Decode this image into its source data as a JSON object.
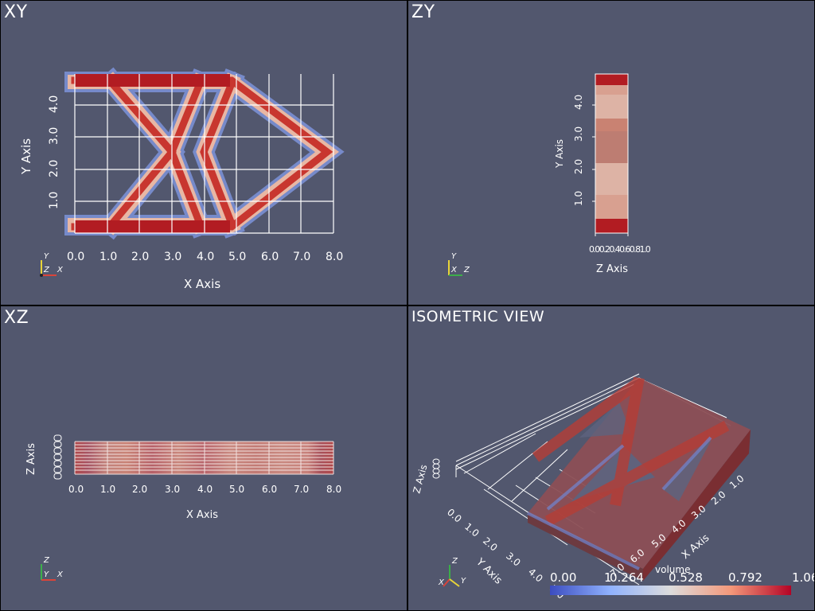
{
  "viewports": {
    "xy": {
      "title": "XY",
      "xlabel": "X Axis",
      "ylabel": "Y Axis",
      "xticks": [
        "0.0",
        "1.0",
        "2.0",
        "3.0",
        "4.0",
        "5.0",
        "6.0",
        "7.0",
        "8.0"
      ],
      "yticks": [
        "1.0",
        "2.0",
        "3.0",
        "4.0"
      ],
      "triad": [
        "Y",
        "Z",
        "X"
      ]
    },
    "zy": {
      "title": "ZY",
      "xlabel": "Z Axis",
      "ylabel": "Y Axis",
      "xticks_text": "0.00.20.40.60.81.0",
      "yticks": [
        "1.0",
        "2.0",
        "3.0",
        "4.0"
      ],
      "triad": [
        "Y",
        "X",
        "Z"
      ]
    },
    "xz": {
      "title": "XZ",
      "xlabel": "X Axis",
      "ylabel": "Z Axis",
      "xticks": [
        "0.0",
        "1.0",
        "2.0",
        "3.0",
        "4.0",
        "5.0",
        "6.0",
        "7.0",
        "8.0"
      ],
      "triad": [
        "Z",
        "Y",
        "X"
      ]
    },
    "iso": {
      "title": "ISOMETRIC VIEW",
      "xlabel": "X Axis",
      "ylabel": "Y Axis",
      "zlabel": "Z Axis",
      "xticks": [
        "1.0",
        "2.0",
        "3.0",
        "4.0",
        "5.0",
        "6.0",
        "7.0"
      ],
      "yticks": [
        "0.0",
        "1.0",
        "2.0",
        "3.0",
        "4.0",
        "5.0"
      ],
      "triad": [
        "Z",
        "X",
        "Y"
      ]
    }
  },
  "colorbar": {
    "title": "volume",
    "labels": [
      "0.00",
      "0.264",
      "0.528",
      "0.792",
      "1.06"
    ],
    "extra_tick": "1"
  },
  "colors": {
    "background": "#52576e",
    "low": "#3b4cc0",
    "mid": "#dddddd",
    "high": "#b40426"
  }
}
